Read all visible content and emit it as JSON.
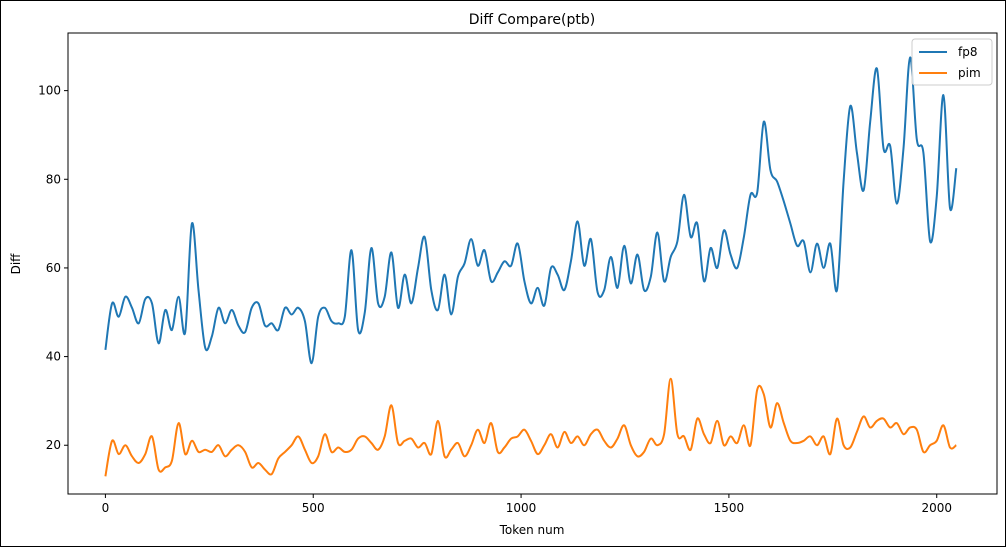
{
  "chart_data": {
    "type": "line",
    "title": "Diff Compare(ptb)",
    "xlabel": "Token num",
    "ylabel": "Diff",
    "xlim": [
      -90,
      2145
    ],
    "ylim": [
      9,
      113
    ],
    "x_ticks": [
      0,
      500,
      1000,
      1500,
      2000
    ],
    "y_ticks": [
      20,
      40,
      60,
      80,
      100
    ],
    "grid": false,
    "legend_position": "top-right",
    "x": [
      0,
      16,
      32,
      48,
      64,
      80,
      96,
      112,
      128,
      144,
      160,
      176,
      192,
      208,
      224,
      240,
      256,
      272,
      288,
      304,
      320,
      336,
      352,
      368,
      384,
      400,
      416,
      432,
      448,
      464,
      480,
      496,
      512,
      528,
      544,
      560,
      576,
      592,
      608,
      624,
      640,
      656,
      672,
      688,
      704,
      720,
      736,
      752,
      768,
      784,
      800,
      816,
      832,
      848,
      864,
      880,
      896,
      912,
      928,
      944,
      960,
      976,
      992,
      1008,
      1024,
      1040,
      1056,
      1072,
      1088,
      1104,
      1120,
      1136,
      1152,
      1168,
      1184,
      1200,
      1216,
      1232,
      1248,
      1264,
      1280,
      1296,
      1312,
      1328,
      1344,
      1360,
      1376,
      1392,
      1408,
      1424,
      1440,
      1456,
      1472,
      1488,
      1504,
      1520,
      1536,
      1552,
      1568,
      1584,
      1600,
      1616,
      1632,
      1648,
      1664,
      1680,
      1696,
      1712,
      1728,
      1744,
      1760,
      1776,
      1792,
      1808,
      1824,
      1840,
      1856,
      1872,
      1888,
      1904,
      1920,
      1936,
      1952,
      1968,
      1984,
      2000,
      2016,
      2032,
      2047
    ],
    "series": [
      {
        "name": "fp8",
        "color": "#1f77b4",
        "values": [
          41.5,
          52,
          49,
          53.5,
          51,
          47.5,
          53,
          52,
          43,
          50.5,
          46,
          53.5,
          45.5,
          70,
          55,
          42,
          44.5,
          51,
          47.5,
          50.5,
          47,
          45.5,
          51,
          52,
          47,
          47.5,
          46,
          51,
          49.5,
          51,
          48,
          38.5,
          49,
          51,
          48,
          47.5,
          49,
          64,
          46,
          50,
          64.5,
          52,
          53.5,
          63.5,
          51,
          58.5,
          52,
          60,
          67,
          55,
          50.5,
          58.5,
          49.5,
          58,
          61,
          66.5,
          60.5,
          64,
          57,
          59,
          61.5,
          60.5,
          65.5,
          57,
          52,
          55.5,
          51.5,
          60,
          58.5,
          55,
          61.5,
          70.5,
          60.5,
          66.5,
          54.5,
          55,
          62.5,
          55.5,
          65,
          56.5,
          63,
          55,
          58,
          68,
          57,
          62.5,
          66,
          76.5,
          67,
          70,
          57,
          64.5,
          60,
          68.5,
          63,
          60,
          67,
          76.5,
          77,
          93,
          82,
          79.5,
          75,
          70,
          65,
          66,
          59,
          65.5,
          60,
          65.5,
          55,
          79.5,
          96.5,
          86,
          77.5,
          93,
          105,
          87,
          87.5,
          74.5,
          87,
          107.5,
          89,
          86,
          66,
          76,
          99,
          73.5,
          82.5
        ]
      },
      {
        "name": "pim",
        "color": "#ff7f0e",
        "values": [
          13,
          21,
          18,
          20,
          17.5,
          16,
          18,
          22,
          14.5,
          15,
          16.5,
          25,
          18,
          21,
          18.5,
          19,
          18.5,
          20,
          17.5,
          19,
          20,
          18.5,
          15,
          16,
          14.5,
          13.5,
          17,
          18.5,
          20,
          22,
          19,
          16,
          17.5,
          22.5,
          18.5,
          19.5,
          18.5,
          19,
          21.5,
          22,
          20.5,
          19,
          22,
          29,
          20.5,
          21,
          21.5,
          19.5,
          20.5,
          18,
          25.5,
          17.5,
          19,
          20.5,
          17.5,
          20,
          23.5,
          20.5,
          25,
          18.5,
          19.5,
          21.5,
          22,
          23.5,
          21,
          18,
          20,
          22.5,
          19.5,
          23,
          20.5,
          22,
          20,
          22.5,
          23.5,
          21,
          19.5,
          21.5,
          24.5,
          20,
          17.5,
          18.5,
          21.5,
          20,
          22.5,
          35,
          22.5,
          22,
          19,
          26,
          22.5,
          20.5,
          25.5,
          20,
          22,
          20.5,
          24.5,
          20,
          32.5,
          31.5,
          24,
          29.5,
          25,
          21,
          20.5,
          21,
          22,
          20,
          22,
          18,
          26,
          20,
          19.5,
          23,
          26.5,
          24,
          25.5,
          26,
          24,
          25,
          22.5,
          24,
          23.5,
          18.5,
          20,
          21,
          24.5,
          19.5,
          20
        ]
      }
    ]
  }
}
